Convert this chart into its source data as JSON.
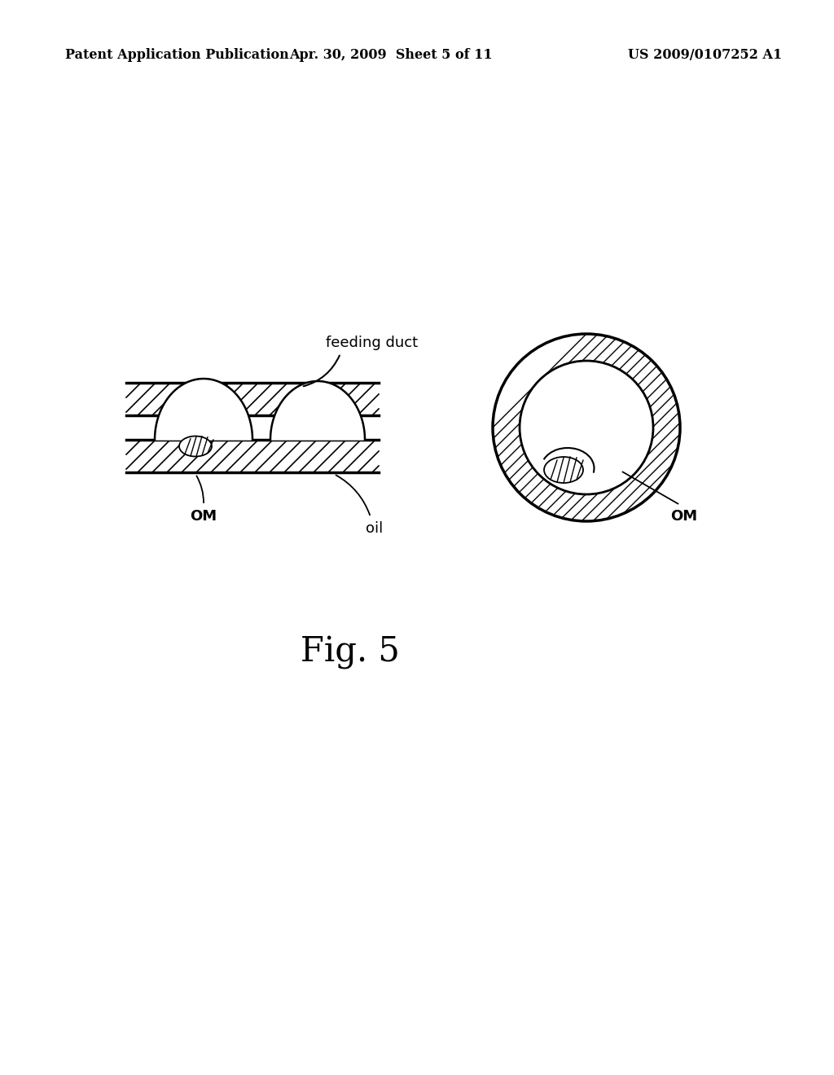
{
  "bg_color": "#ffffff",
  "header_left": "Patent Application Publication",
  "header_mid": "Apr. 30, 2009  Sheet 5 of 11",
  "header_right": "US 2009/0107252 A1",
  "header_fontsize": 11.5,
  "label_feeding_duct": "feeding duct",
  "label_om_left": "OM",
  "label_om_right": "OM",
  "label_oil": "oil",
  "fig_label": "Fig. 5",
  "fig_label_fontsize": 30
}
